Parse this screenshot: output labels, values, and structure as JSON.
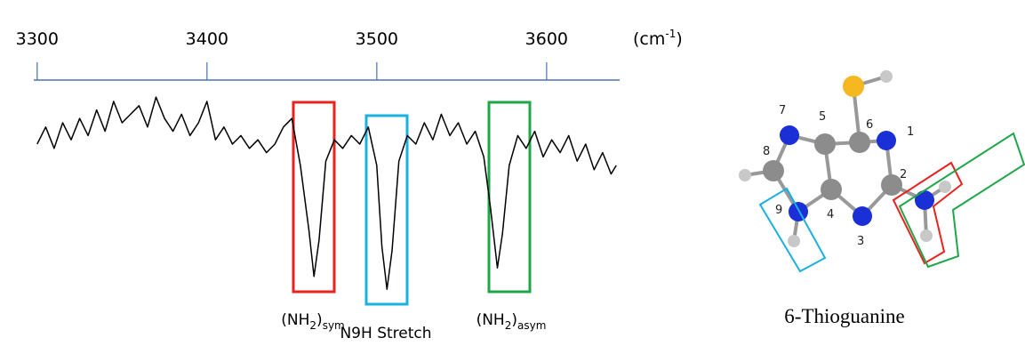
{
  "chart_data": {
    "type": "line",
    "x_unit": {
      "open": "(cm",
      "sup": "-1",
      "close": ")"
    },
    "xlim": [
      3298,
      3643
    ],
    "xticks": [
      3300,
      3400,
      3500,
      3600
    ],
    "ylim": [
      0,
      100
    ],
    "axis_color": "#4a74b4",
    "x": [
      3300,
      3305,
      3310,
      3315,
      3320,
      3325,
      3330,
      3335,
      3340,
      3345,
      3350,
      3355,
      3360,
      3365,
      3370,
      3375,
      3380,
      3385,
      3390,
      3395,
      3400,
      3405,
      3410,
      3415,
      3420,
      3425,
      3430,
      3435,
      3440,
      3445,
      3450,
      3455,
      3460,
      3463,
      3466,
      3470,
      3475,
      3480,
      3485,
      3490,
      3495,
      3500,
      3503,
      3506,
      3509,
      3513,
      3518,
      3523,
      3528,
      3533,
      3538,
      3543,
      3548,
      3553,
      3558,
      3563,
      3567,
      3571,
      3574,
      3578,
      3583,
      3588,
      3593,
      3598,
      3603,
      3608,
      3613,
      3618,
      3623,
      3628,
      3633,
      3638,
      3641
    ],
    "series": [
      {
        "color": "#000000",
        "values": [
          70,
          78,
          68,
          80,
          72,
          82,
          74,
          86,
          76,
          90,
          80,
          84,
          88,
          78,
          92,
          82,
          76,
          84,
          74,
          80,
          90,
          72,
          78,
          70,
          74,
          68,
          72,
          66,
          70,
          78,
          82,
          60,
          30,
          8,
          25,
          62,
          72,
          68,
          74,
          70,
          78,
          60,
          22,
          2,
          20,
          62,
          74,
          70,
          80,
          72,
          84,
          74,
          80,
          70,
          76,
          64,
          40,
          12,
          28,
          60,
          74,
          68,
          76,
          64,
          72,
          66,
          74,
          62,
          70,
          58,
          66,
          56,
          60
        ]
      }
    ],
    "annotations": [
      {
        "parts": [
          "(NH",
          "2",
          ")",
          "sym"
        ],
        "color": "#e8231f"
      },
      {
        "text": "N9H Stretch",
        "color": "#1ab0e0"
      },
      {
        "parts": [
          "(NH",
          "2",
          ")",
          "asym"
        ],
        "color": "#1fa64a"
      }
    ]
  },
  "molecule": {
    "caption": "6-Thioguanine",
    "atom_labels": [
      "1",
      "2",
      "3",
      "4",
      "5",
      "6",
      "7",
      "8",
      "9"
    ]
  }
}
